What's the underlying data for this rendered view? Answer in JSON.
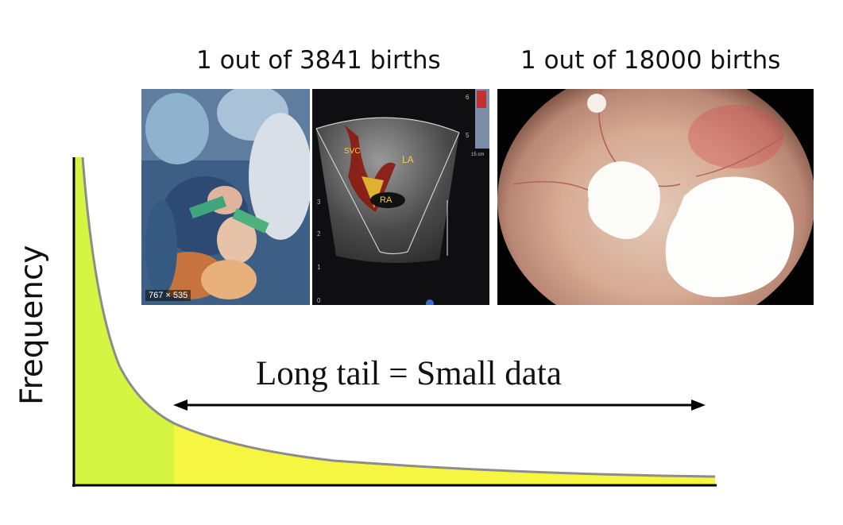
{
  "captions": [
    "1 out of 3841 births",
    "1 out of 18000 births"
  ],
  "y_axis_label": "Frequency",
  "tail_label": "Long tail = Small data",
  "echo_labels": {
    "svc": "SVC",
    "la": "LA",
    "ra": "RA",
    "scale_top": "6",
    "scale_5": "5",
    "scale_3": "3",
    "scale_2": "2",
    "scale_1": "1",
    "scale_0": "0",
    "cm": "15 cm"
  },
  "surgery_photo_size": "767 × 535",
  "colors": {
    "head_fill": "#d4f542",
    "tail_fill": "#f5f542",
    "curve": "#8c8c8c",
    "axis": "#000000"
  }
}
